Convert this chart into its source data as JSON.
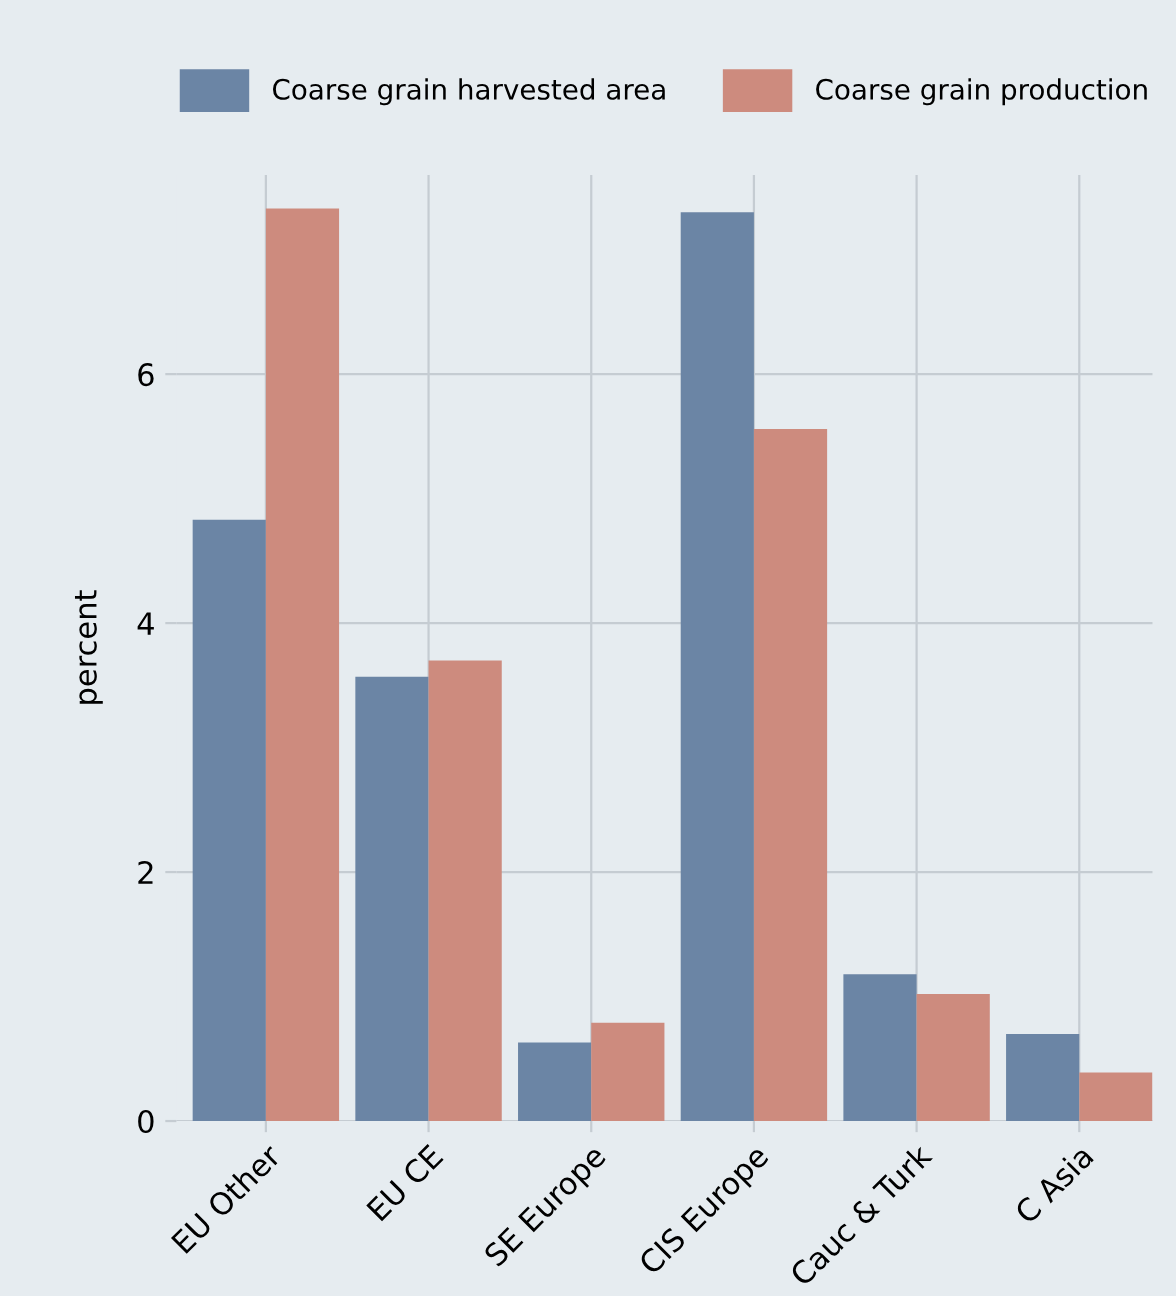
{
  "chart_data": {
    "type": "bar",
    "ylabel": "percent",
    "categories": [
      "EU Other",
      "EU CE",
      "SE Europe",
      "CIS Europe",
      "Cauc & Turk",
      "C Asia"
    ],
    "series": [
      {
        "name": "Coarse grain harvested area",
        "color": "#6b85a5",
        "values": [
          4.83,
          3.57,
          0.63,
          7.3,
          1.18,
          0.7
        ]
      },
      {
        "name": "Coarse grain production",
        "color": "#cd8b7e",
        "values": [
          7.33,
          3.7,
          0.79,
          5.56,
          1.02,
          0.39
        ]
      }
    ],
    "ylim": [
      0,
      7.6
    ],
    "yticks": [
      0,
      2,
      4,
      6
    ],
    "grid": true,
    "legend": "top"
  }
}
